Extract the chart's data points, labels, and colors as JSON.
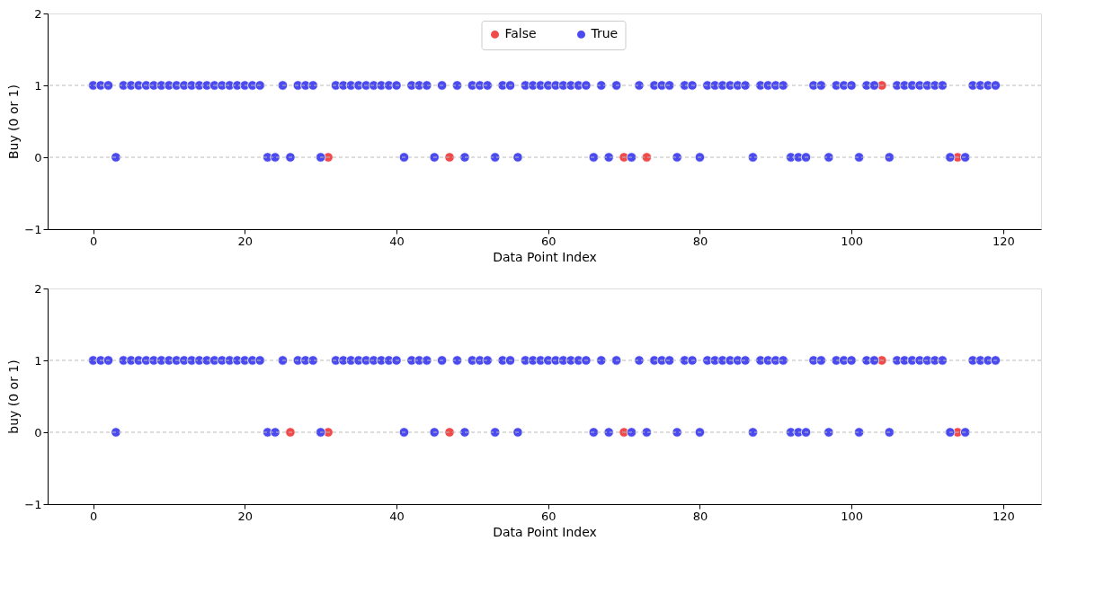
{
  "chart_data": [
    {
      "type": "scatter",
      "xlabel": "Data Point Index",
      "ylabel": "Buy (0 or 1)",
      "xlim": [
        -6,
        125
      ],
      "xticks": [
        0,
        20,
        40,
        60,
        80,
        100,
        120
      ],
      "ylim": [
        -1,
        2
      ],
      "yticks": [
        -1,
        0,
        1,
        2
      ],
      "grid": false,
      "legend": "top",
      "marker": "circle",
      "ref_lines": [
        {
          "axis": "y",
          "value": 0,
          "color": "#bbbbbb",
          "line_style": "dashed"
        },
        {
          "axis": "y",
          "value": 1,
          "color": "#bbbbbb",
          "line_style": "dashed"
        }
      ],
      "series": [
        {
          "name": "False",
          "color": "#f04a4a",
          "x": [
            31,
            47,
            70,
            73,
            104,
            114
          ],
          "values": [
            0,
            0,
            0,
            0,
            1,
            0
          ]
        },
        {
          "name": "True",
          "color": "#4a4af0",
          "x": [
            0,
            1,
            2,
            3,
            4,
            5,
            6,
            7,
            8,
            9,
            10,
            11,
            12,
            13,
            14,
            15,
            16,
            17,
            18,
            19,
            20,
            21,
            22,
            23,
            24,
            25,
            26,
            27,
            28,
            29,
            30,
            32,
            33,
            34,
            35,
            36,
            37,
            38,
            39,
            40,
            41,
            42,
            43,
            44,
            45,
            46,
            48,
            49,
            50,
            51,
            52,
            53,
            54,
            55,
            56,
            57,
            58,
            59,
            60,
            61,
            62,
            63,
            64,
            65,
            66,
            67,
            68,
            69,
            71,
            72,
            74,
            75,
            76,
            77,
            78,
            79,
            80,
            81,
            82,
            83,
            84,
            85,
            86,
            87,
            88,
            89,
            90,
            91,
            92,
            93,
            94,
            95,
            96,
            97,
            98,
            99,
            100,
            101,
            102,
            103,
            105,
            106,
            107,
            108,
            109,
            110,
            111,
            112,
            113,
            115,
            116,
            117,
            118,
            119
          ],
          "values": [
            1,
            1,
            1,
            0,
            1,
            1,
            1,
            1,
            1,
            1,
            1,
            1,
            1,
            1,
            1,
            1,
            1,
            1,
            1,
            1,
            1,
            1,
            1,
            0,
            0,
            1,
            0,
            1,
            1,
            1,
            0,
            1,
            1,
            1,
            1,
            1,
            1,
            1,
            1,
            1,
            0,
            1,
            1,
            1,
            0,
            1,
            1,
            0,
            1,
            1,
            1,
            0,
            1,
            1,
            0,
            1,
            1,
            1,
            1,
            1,
            1,
            1,
            1,
            1,
            0,
            1,
            0,
            1,
            0,
            1,
            1,
            1,
            1,
            0,
            1,
            1,
            0,
            1,
            1,
            1,
            1,
            1,
            1,
            0,
            1,
            1,
            1,
            1,
            0,
            0,
            0,
            1,
            1,
            0,
            1,
            1,
            1,
            0,
            1,
            1,
            0,
            1,
            1,
            1,
            1,
            1,
            1,
            1,
            0,
            0,
            1,
            1,
            1,
            1
          ]
        }
      ]
    },
    {
      "type": "scatter",
      "xlabel": "Data Point Index",
      "ylabel": "buy (0 or 1)",
      "xlim": [
        -6,
        125
      ],
      "xticks": [
        0,
        20,
        40,
        60,
        80,
        100,
        120
      ],
      "ylim": [
        -1,
        2
      ],
      "yticks": [
        -1,
        0,
        1,
        2
      ],
      "grid": false,
      "legend": "top",
      "marker": "circle",
      "ref_lines": [
        {
          "axis": "y",
          "value": 0,
          "color": "#bbbbbb",
          "line_style": "dashed"
        },
        {
          "axis": "y",
          "value": 1,
          "color": "#bbbbbb",
          "line_style": "dashed"
        }
      ],
      "series": [
        {
          "name": "False",
          "color": "#f04a4a",
          "x": [
            26,
            31,
            47,
            70,
            104,
            114
          ],
          "values": [
            0,
            0,
            0,
            0,
            1,
            0
          ]
        },
        {
          "name": "True",
          "color": "#4a4af0",
          "x": [
            0,
            1,
            2,
            3,
            4,
            5,
            6,
            7,
            8,
            9,
            10,
            11,
            12,
            13,
            14,
            15,
            16,
            17,
            18,
            19,
            20,
            21,
            22,
            23,
            24,
            25,
            27,
            28,
            29,
            30,
            32,
            33,
            34,
            35,
            36,
            37,
            38,
            39,
            40,
            41,
            42,
            43,
            44,
            45,
            46,
            48,
            49,
            50,
            51,
            52,
            53,
            54,
            55,
            56,
            57,
            58,
            59,
            60,
            61,
            62,
            63,
            64,
            65,
            66,
            67,
            68,
            69,
            71,
            72,
            73,
            74,
            75,
            76,
            77,
            78,
            79,
            80,
            81,
            82,
            83,
            84,
            85,
            86,
            87,
            88,
            89,
            90,
            91,
            92,
            93,
            94,
            95,
            96,
            97,
            98,
            99,
            100,
            101,
            102,
            103,
            105,
            106,
            107,
            108,
            109,
            110,
            111,
            112,
            113,
            115,
            116,
            117,
            118,
            119
          ],
          "values": [
            1,
            1,
            1,
            0,
            1,
            1,
            1,
            1,
            1,
            1,
            1,
            1,
            1,
            1,
            1,
            1,
            1,
            1,
            1,
            1,
            1,
            1,
            1,
            0,
            0,
            1,
            1,
            1,
            1,
            0,
            1,
            1,
            1,
            1,
            1,
            1,
            1,
            1,
            1,
            0,
            1,
            1,
            1,
            0,
            1,
            1,
            0,
            1,
            1,
            1,
            0,
            1,
            1,
            0,
            1,
            1,
            1,
            1,
            1,
            1,
            1,
            1,
            1,
            0,
            1,
            0,
            1,
            0,
            1,
            0,
            1,
            1,
            1,
            0,
            1,
            1,
            0,
            1,
            1,
            1,
            1,
            1,
            1,
            0,
            1,
            1,
            1,
            1,
            0,
            0,
            0,
            1,
            1,
            0,
            1,
            1,
            1,
            0,
            1,
            1,
            0,
            1,
            1,
            1,
            1,
            1,
            1,
            1,
            0,
            0,
            1,
            1,
            1,
            1
          ]
        }
      ]
    }
  ]
}
